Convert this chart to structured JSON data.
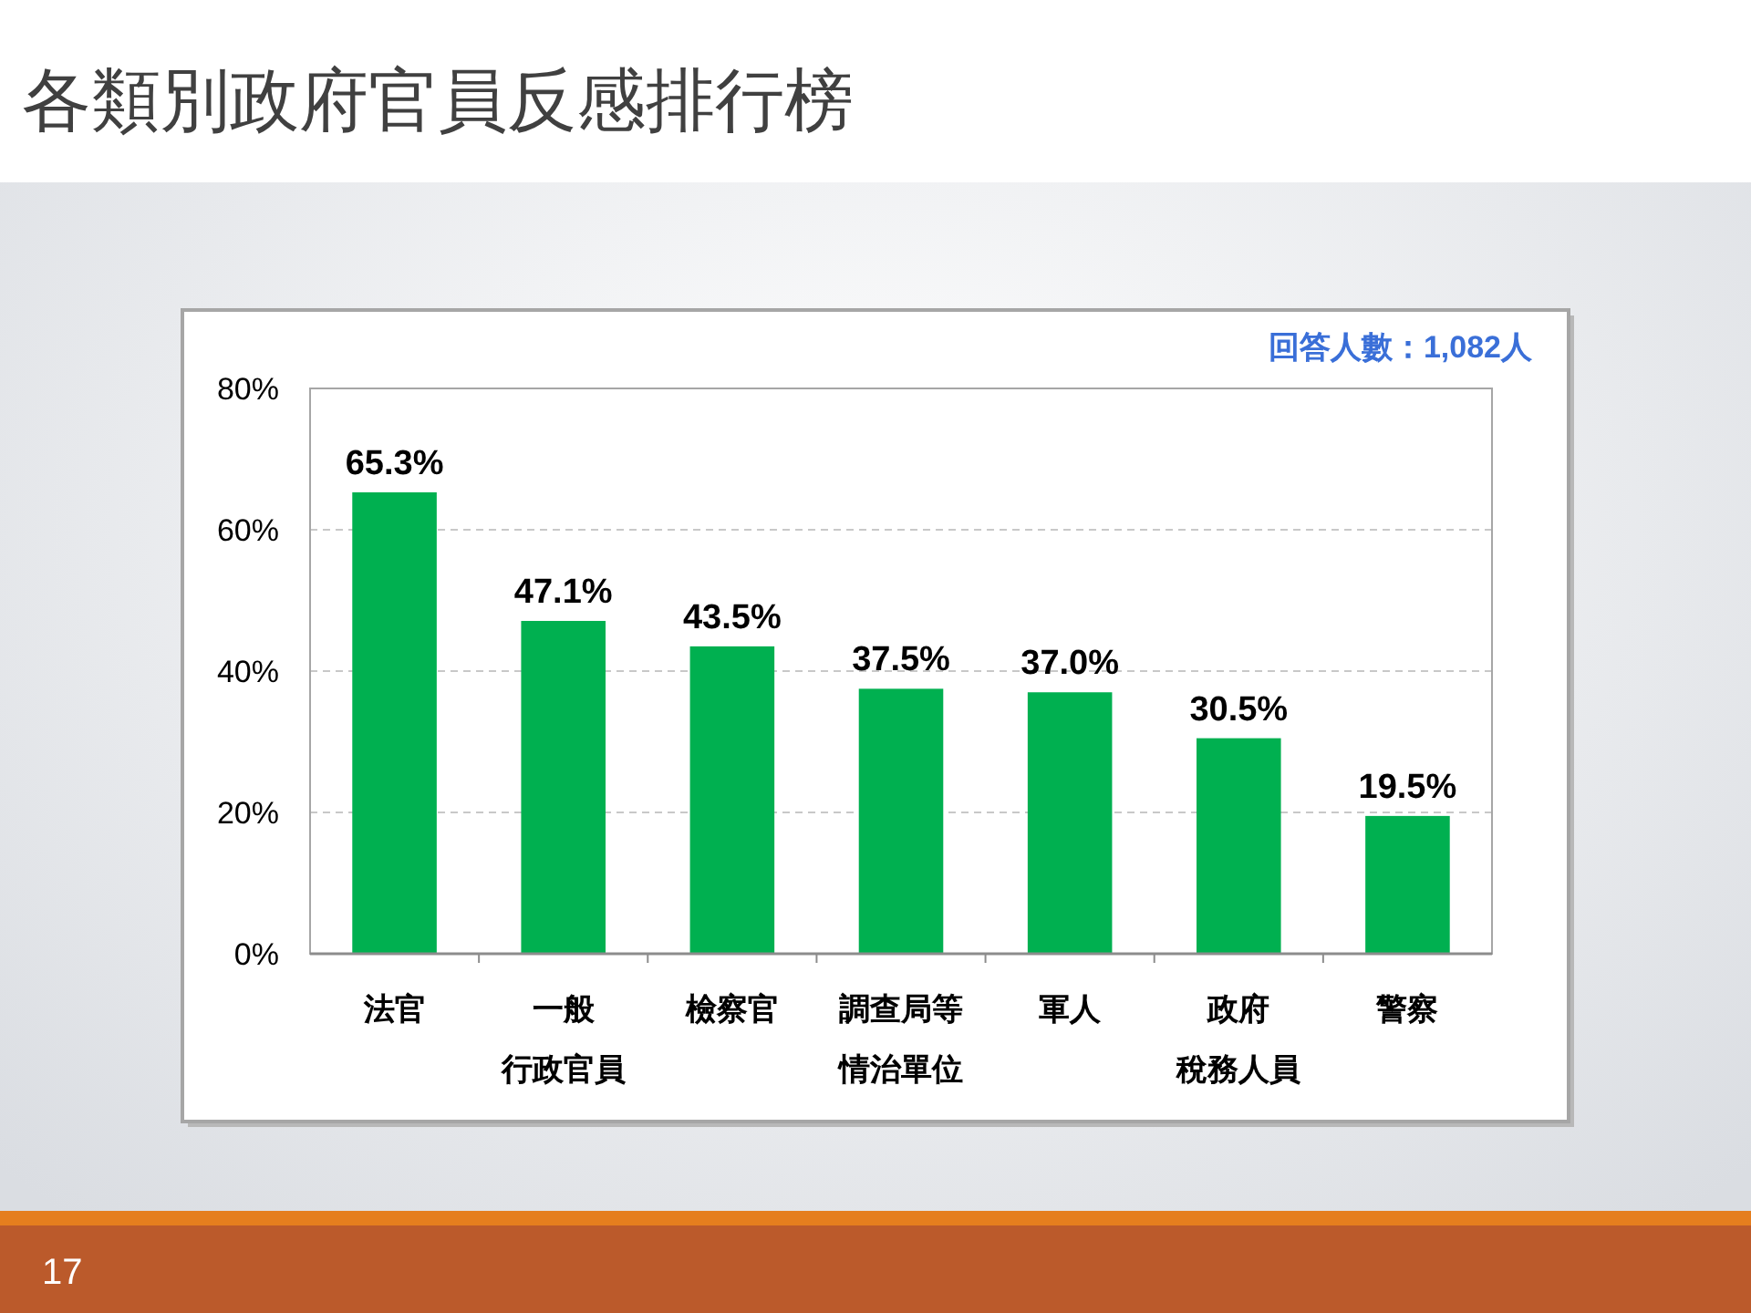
{
  "chart_data": {
    "type": "bar",
    "title": "各類別政府官員反感排行榜",
    "categories": [
      "法官",
      "一般行政官員",
      "檢察官",
      "調查局等情治單位",
      "軍人",
      "政府稅務人員",
      "警察"
    ],
    "values": [
      65.3,
      47.1,
      43.5,
      37.5,
      37.0,
      30.5,
      19.5
    ],
    "value_labels": [
      "65.3%",
      "47.1%",
      "43.5%",
      "37.5%",
      "37.0%",
      "30.5%",
      "19.5%"
    ],
    "color": "#00b050",
    "ylim": [
      0,
      80
    ],
    "yticks": [
      {
        "value": 0,
        "label": "0%"
      },
      {
        "value": 20,
        "label": "20%"
      },
      {
        "value": 40,
        "label": "40%"
      },
      {
        "value": 60,
        "label": "60%"
      },
      {
        "value": 80,
        "label": "80%"
      }
    ],
    "grid": "y",
    "annotations": [
      "回答人數：1,082人",
      "17"
    ]
  }
}
